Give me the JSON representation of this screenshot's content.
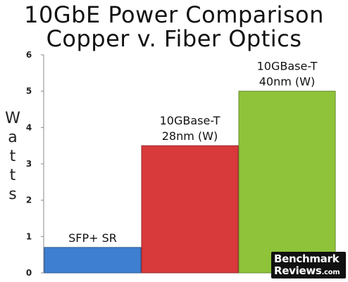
{
  "chart_data": {
    "type": "bar",
    "title_lines": [
      "10GbE Power Comparison",
      "Copper v. Fiber Optics"
    ],
    "ylabel": "Watts",
    "ylim": [
      0,
      6
    ],
    "yticks": [
      "0",
      "1",
      "2",
      "3",
      "4",
      "5",
      "6"
    ],
    "grid": false,
    "categories": [
      [
        "SFP+ SR"
      ],
      [
        "10GBase-T",
        "28nm (W)"
      ],
      [
        "10GBase-T",
        "40nm (W)"
      ]
    ],
    "values": [
      0.7,
      3.5,
      5.0
    ],
    "colors": [
      "#3e7fd1",
      "#d8393a",
      "#8fc33a"
    ]
  },
  "watermark": {
    "line1": "Benchmark",
    "line2": "Reviews",
    "line2_suffix": ".com"
  }
}
